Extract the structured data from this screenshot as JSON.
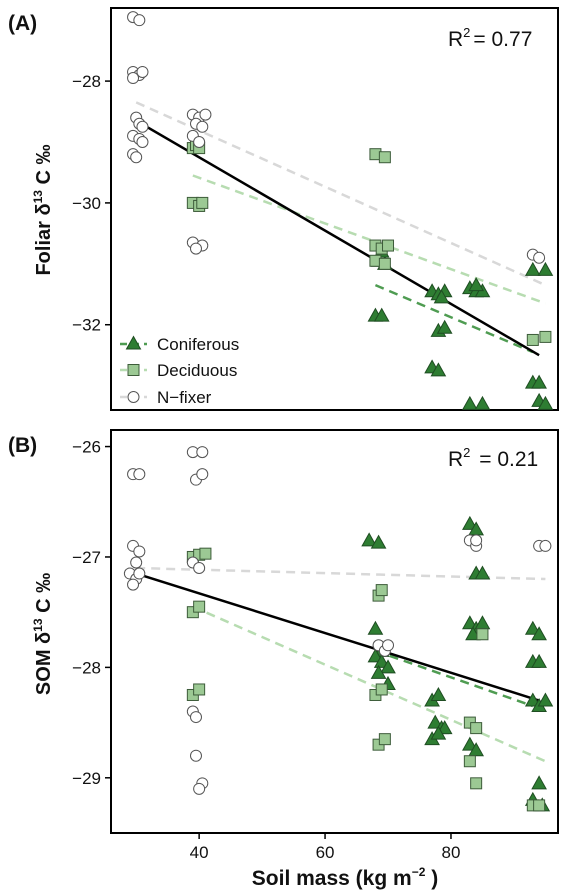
{
  "colors": {
    "coniferous": "#2e7d32",
    "deciduous": "#9cc994",
    "nfixer": "#ffffff",
    "coniferous_line": "#4f9c52",
    "deciduous_line": "#b7dcb1",
    "nfixer_line": "#d8d8d8",
    "overall_line": "#000000"
  },
  "legend": {
    "items": [
      {
        "label": "Coniferous",
        "shape": "triangle"
      },
      {
        "label": "Deciduous",
        "shape": "square"
      },
      {
        "label": "N−fixer",
        "shape": "circle"
      }
    ],
    "placement": "bottom-left of panel A"
  },
  "chart_data": [
    {
      "type": "scatter",
      "panel_label": "(A)",
      "r2_text": "= 0.77",
      "ylabel_parts": {
        "pre": "Foliar δ",
        "sup": "13",
        "post": " C ‰"
      },
      "xlim": [
        26,
        97
      ],
      "ylim": [
        -33.4,
        -26.8
      ],
      "yticks": [
        -28,
        -30,
        -32
      ],
      "ytick_labels": [
        "−28",
        "−30",
        "−32"
      ],
      "series": [
        {
          "name": "Coniferous",
          "shape": "triangle",
          "points": [
            [
              68,
              -31.85
            ],
            [
              69,
              -31.85
            ],
            [
              68.5,
              -30.95
            ],
            [
              69.5,
              -31.0
            ],
            [
              69,
              -30.8
            ],
            [
              77,
              -31.45
            ],
            [
              78,
              -31.5
            ],
            [
              79,
              -31.45
            ],
            [
              78.5,
              -31.55
            ],
            [
              78,
              -32.1
            ],
            [
              79,
              -32.05
            ],
            [
              77,
              -32.7
            ],
            [
              78,
              -32.75
            ],
            [
              83,
              -31.4
            ],
            [
              84,
              -31.45
            ],
            [
              85,
              -31.45
            ],
            [
              84,
              -31.35
            ],
            [
              83,
              -33.3
            ],
            [
              85,
              -33.3
            ],
            [
              93,
              -31.1
            ],
            [
              95,
              -31.1
            ],
            [
              93,
              -32.95
            ],
            [
              94,
              -32.95
            ],
            [
              94,
              -33.25
            ],
            [
              95,
              -33.3
            ]
          ]
        },
        {
          "name": "Deciduous",
          "shape": "square",
          "points": [
            [
              39,
              -29.1
            ],
            [
              39.5,
              -29.05
            ],
            [
              40,
              -29.1
            ],
            [
              39,
              -30.0
            ],
            [
              40,
              -30.05
            ],
            [
              40.5,
              -30.0
            ],
            [
              68,
              -29.2
            ],
            [
              69.5,
              -29.25
            ],
            [
              68,
              -30.7
            ],
            [
              69,
              -30.75
            ],
            [
              70,
              -30.7
            ],
            [
              68,
              -30.95
            ],
            [
              69.5,
              -31.0
            ],
            [
              93,
              -32.25
            ],
            [
              95,
              -32.2
            ]
          ]
        },
        {
          "name": "N−fixer",
          "shape": "circle",
          "points": [
            [
              29.5,
              -26.95
            ],
            [
              30.5,
              -27.0
            ],
            [
              29.5,
              -27.85
            ],
            [
              30.5,
              -27.9
            ],
            [
              31,
              -27.85
            ],
            [
              29.5,
              -27.95
            ],
            [
              30,
              -28.6
            ],
            [
              30.5,
              -28.7
            ],
            [
              31,
              -28.75
            ],
            [
              29.5,
              -28.9
            ],
            [
              30.5,
              -28.95
            ],
            [
              29.5,
              -29.2
            ],
            [
              30,
              -29.25
            ],
            [
              31,
              -29.0
            ],
            [
              39,
              -28.55
            ],
            [
              40,
              -28.6
            ],
            [
              41,
              -28.55
            ],
            [
              39.5,
              -28.7
            ],
            [
              40.5,
              -28.75
            ],
            [
              39,
              -28.9
            ],
            [
              40,
              -29.0
            ],
            [
              39,
              -30.65
            ],
            [
              40.5,
              -30.7
            ],
            [
              39.5,
              -30.75
            ],
            [
              93,
              -30.85
            ],
            [
              94,
              -30.9
            ]
          ]
        }
      ],
      "fit_lines": [
        {
          "series": "Coniferous",
          "x": [
            68,
            93
          ],
          "y": [
            -31.35,
            -32.45
          ]
        },
        {
          "series": "Deciduous",
          "x": [
            39,
            95
          ],
          "y": [
            -29.55,
            -31.65
          ]
        },
        {
          "series": "N−fixer",
          "x": [
            30,
            95
          ],
          "y": [
            -28.35,
            -31.35
          ]
        },
        {
          "series": "Overall",
          "x": [
            30,
            94
          ],
          "y": [
            -28.65,
            -32.5
          ]
        }
      ]
    },
    {
      "type": "scatter",
      "panel_label": "(B)",
      "r2_text": " = 0.21",
      "ylabel_parts": {
        "pre": "SOM δ",
        "sup": "13",
        "post": "  C ‰"
      },
      "xlabel_parts": {
        "pre": "Soil mass (kg m",
        "sup": "−2",
        "post": " )"
      },
      "xlim": [
        26,
        97
      ],
      "ylim": [
        -29.5,
        -25.85
      ],
      "xticks": [
        40,
        60,
        80
      ],
      "xtick_labels": [
        "40",
        "60",
        "80"
      ],
      "yticks": [
        -26,
        -27,
        -28,
        -29
      ],
      "ytick_labels": [
        "−26",
        "−27",
        "−28",
        "−29"
      ],
      "series": [
        {
          "name": "Coniferous",
          "shape": "triangle",
          "points": [
            [
              67,
              -26.85
            ],
            [
              68.5,
              -26.87
            ],
            [
              68,
              -27.65
            ],
            [
              69,
              -27.85
            ],
            [
              68,
              -27.9
            ],
            [
              69,
              -27.95
            ],
            [
              70,
              -28.0
            ],
            [
              68.5,
              -28.05
            ],
            [
              70,
              -28.15
            ],
            [
              77,
              -28.3
            ],
            [
              78,
              -28.25
            ],
            [
              77.5,
              -28.5
            ],
            [
              78.5,
              -28.55
            ],
            [
              79,
              -28.55
            ],
            [
              77,
              -28.65
            ],
            [
              78,
              -28.6
            ],
            [
              83,
              -26.7
            ],
            [
              84,
              -26.75
            ],
            [
              84,
              -27.15
            ],
            [
              85,
              -27.15
            ],
            [
              83,
              -27.6
            ],
            [
              84,
              -27.65
            ],
            [
              85,
              -27.6
            ],
            [
              83.5,
              -27.7
            ],
            [
              83,
              -28.7
            ],
            [
              84,
              -28.75
            ],
            [
              93,
              -27.65
            ],
            [
              94,
              -27.7
            ],
            [
              93,
              -27.95
            ],
            [
              94,
              -27.95
            ],
            [
              93,
              -28.3
            ],
            [
              94,
              -28.35
            ],
            [
              95,
              -28.3
            ],
            [
              94,
              -29.05
            ],
            [
              93,
              -29.2
            ],
            [
              94.5,
              -29.25
            ]
          ]
        },
        {
          "name": "Deciduous",
          "shape": "square",
          "points": [
            [
              39,
              -27.0
            ],
            [
              40,
              -26.98
            ],
            [
              41,
              -26.97
            ],
            [
              39,
              -27.5
            ],
            [
              40,
              -27.45
            ],
            [
              39,
              -28.25
            ],
            [
              40,
              -28.2
            ],
            [
              68.5,
              -27.35
            ],
            [
              69,
              -27.3
            ],
            [
              68,
              -28.25
            ],
            [
              69,
              -28.2
            ],
            [
              68.5,
              -28.7
            ],
            [
              69.5,
              -28.65
            ],
            [
              83,
              -28.5
            ],
            [
              84,
              -28.55
            ],
            [
              83,
              -28.85
            ],
            [
              84,
              -29.05
            ],
            [
              85,
              -27.7
            ],
            [
              93,
              -29.25
            ],
            [
              94,
              -29.25
            ]
          ]
        },
        {
          "name": "N−fixer",
          "shape": "circle",
          "points": [
            [
              29.5,
              -26.25
            ],
            [
              30.5,
              -26.25
            ],
            [
              29.5,
              -26.9
            ],
            [
              30.5,
              -26.95
            ],
            [
              30,
              -27.05
            ],
            [
              29,
              -27.15
            ],
            [
              30,
              -27.2
            ],
            [
              29.5,
              -27.25
            ],
            [
              30.5,
              -27.15
            ],
            [
              39,
              -26.05
            ],
            [
              40.5,
              -26.05
            ],
            [
              39.5,
              -26.3
            ],
            [
              40.5,
              -26.25
            ],
            [
              39,
              -27.05
            ],
            [
              40,
              -27.1
            ],
            [
              39,
              -28.4
            ],
            [
              39.5,
              -28.45
            ],
            [
              39.5,
              -28.8
            ],
            [
              40.5,
              -29.05
            ],
            [
              40,
              -29.1
            ],
            [
              68.5,
              -27.8
            ],
            [
              69.5,
              -27.85
            ],
            [
              70,
              -27.8
            ],
            [
              83,
              -26.85
            ],
            [
              84,
              -26.9
            ],
            [
              84,
              -26.85
            ],
            [
              94,
              -26.9
            ],
            [
              95,
              -26.9
            ]
          ]
        }
      ],
      "fit_lines": [
        {
          "series": "Coniferous",
          "x": [
            68,
            93
          ],
          "y": [
            -27.85,
            -28.35
          ]
        },
        {
          "series": "Deciduous",
          "x": [
            39,
            95
          ],
          "y": [
            -27.45,
            -28.85
          ]
        },
        {
          "series": "N−fixer",
          "x": [
            30,
            95
          ],
          "y": [
            -27.1,
            -27.2
          ]
        },
        {
          "series": "Overall",
          "x": [
            30,
            94
          ],
          "y": [
            -27.15,
            -28.3
          ]
        }
      ]
    }
  ],
  "r2_label": {
    "R": "R",
    "sup": "2"
  }
}
